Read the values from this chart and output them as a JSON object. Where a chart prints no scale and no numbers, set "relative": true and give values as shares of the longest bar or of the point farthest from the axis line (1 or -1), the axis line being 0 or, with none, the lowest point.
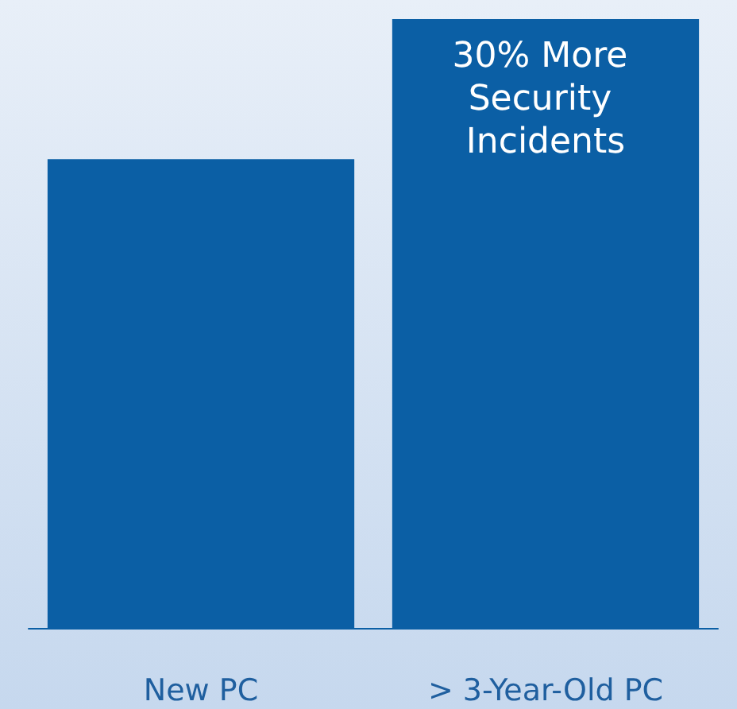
{
  "chart_data": {
    "type": "bar",
    "relative": true,
    "categories": [
      "New PC",
      "> 3-Year-Old PC"
    ],
    "values": [
      0.77,
      1
    ],
    "color": "#0b5fa5",
    "annotations": [
      {
        "text": "30% More Security Incidents",
        "x": "> 3-Year-Old PC",
        "y": 1
      }
    ]
  }
}
